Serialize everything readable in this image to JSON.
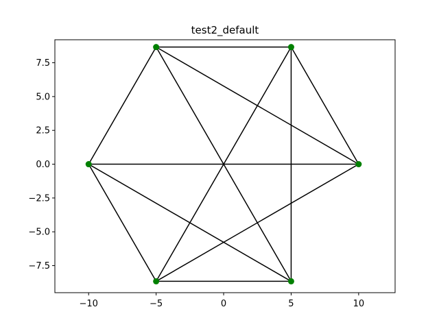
{
  "chart_data": {
    "type": "scatter",
    "title": "test2_default",
    "xlabel": "",
    "ylabel": "",
    "xlim": [
      -12.5,
      12.7
    ],
    "ylim": [
      -9.5,
      9.2
    ],
    "grid": false,
    "xticks": [
      -10,
      -5,
      0,
      5,
      10
    ],
    "yticks": [
      -7.5,
      -5.0,
      -2.5,
      0.0,
      2.5,
      5.0,
      7.5
    ],
    "xtick_labels": [
      "−10",
      "−5",
      "0",
      "5",
      "10"
    ],
    "ytick_labels": [
      "−7.5",
      "−5.0",
      "−2.5",
      "0.0",
      "2.5",
      "5.0",
      "7.5"
    ],
    "nodes": [
      {
        "x": -5,
        "y": 8.66
      },
      {
        "x": 5,
        "y": 8.66
      },
      {
        "x": -10,
        "y": 0
      },
      {
        "x": 10,
        "y": 0
      },
      {
        "x": -5,
        "y": -8.66
      },
      {
        "x": 5,
        "y": -8.66
      }
    ],
    "edges": [
      [
        [
          -5,
          8.66
        ],
        [
          5,
          8.66
        ]
      ],
      [
        [
          -5,
          8.66
        ],
        [
          -10,
          0
        ]
      ],
      [
        [
          -5,
          8.66
        ],
        [
          10,
          0
        ]
      ],
      [
        [
          -5,
          8.66
        ],
        [
          5,
          -8.66
        ]
      ],
      [
        [
          5,
          8.66
        ],
        [
          10,
          0
        ]
      ],
      [
        [
          5,
          8.66
        ],
        [
          -5,
          -8.66
        ]
      ],
      [
        [
          5,
          8.66
        ],
        [
          5,
          -8.66
        ]
      ],
      [
        [
          -10,
          0
        ],
        [
          10,
          0
        ]
      ],
      [
        [
          -10,
          0
        ],
        [
          -5,
          -8.66
        ]
      ],
      [
        [
          -10,
          0
        ],
        [
          5,
          -8.66
        ]
      ],
      [
        [
          10,
          0
        ],
        [
          -5,
          -8.66
        ]
      ],
      [
        [
          -5,
          -8.66
        ],
        [
          5,
          -8.66
        ]
      ]
    ],
    "node_color": "#008000",
    "edge_color": "#000000"
  }
}
